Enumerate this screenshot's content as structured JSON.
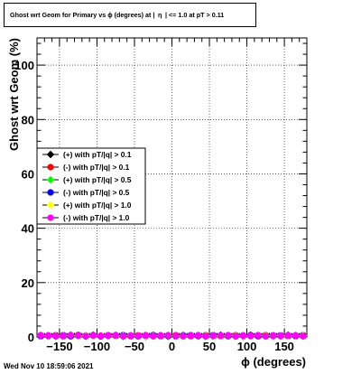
{
  "chart_data": {
    "type": "scatter",
    "title": "Ghost wrt Geom for Primary vs ϕ (degrees) at | η | <= 1.0 at pT > 0.11",
    "xlabel": "ϕ (degrees)",
    "ylabel": "Ghost wrt Geom (%)",
    "xlim": [
      -180,
      180
    ],
    "ylim": [
      0,
      110
    ],
    "x_ticks": [
      -150,
      -100,
      -50,
      0,
      50,
      100,
      150
    ],
    "y_ticks": [
      0,
      20,
      40,
      60,
      80,
      100
    ],
    "grid": true,
    "legend_position": "left-middle",
    "x": [
      -175,
      -165,
      -155,
      -145,
      -135,
      -125,
      -115,
      -105,
      -95,
      -85,
      -75,
      -65,
      -55,
      -45,
      -35,
      -25,
      -15,
      -5,
      5,
      15,
      25,
      35,
      45,
      55,
      65,
      75,
      85,
      95,
      105,
      115,
      125,
      135,
      145,
      155,
      165,
      175
    ],
    "series": [
      {
        "name": "(+) with pT/|q| > 0.1",
        "color": "#000000",
        "marker": "diamond",
        "values": [
          0.4,
          0.6,
          0.3,
          0.5,
          0.7,
          0.4,
          0.3,
          0.6,
          0.5,
          0.4,
          0.6,
          0.3,
          0.5,
          0.4,
          0.2,
          0.6,
          0.5,
          0.3,
          0.4,
          0.6,
          0.5,
          0.4,
          0.3,
          0.5,
          0.6,
          0.4,
          0.5,
          0.3,
          0.6,
          0.4,
          0.5,
          0.3,
          0.4,
          0.6,
          0.5,
          0.4
        ]
      },
      {
        "name": "(-) with pT/|q| > 0.1",
        "color": "#ff0000",
        "marker": "circle",
        "values": [
          0.5,
          0.4,
          0.6,
          0.3,
          0.5,
          0.7,
          0.4,
          0.5,
          0.3,
          0.6,
          0.4,
          0.5,
          0.3,
          0.6,
          0.4,
          0.5,
          0.3,
          0.4,
          0.6,
          0.5,
          0.3,
          0.4,
          0.6,
          0.5,
          0.3,
          0.4,
          0.6,
          0.5,
          0.4,
          0.3,
          0.6,
          0.5,
          0.4,
          0.3,
          0.5,
          0.6
        ]
      },
      {
        "name": "(+) with pT/|q| > 0.5",
        "color": "#00ff00",
        "marker": "diamond",
        "values": [
          0.6,
          0.3,
          0.5,
          0.6,
          0.4,
          0.5,
          0.6,
          0.3,
          0.5,
          0.4,
          0.6,
          0.5,
          0.4,
          0.3,
          0.5,
          0.6,
          0.4,
          0.5,
          0.3,
          0.6,
          0.4,
          0.5,
          0.6,
          0.3,
          0.4,
          0.5,
          0.6,
          0.4,
          0.3,
          0.5,
          0.6,
          0.4,
          0.5,
          0.3,
          0.6,
          0.4
        ]
      },
      {
        "name": "(-) with pT/|q| > 0.5",
        "color": "#0000ff",
        "marker": "circle",
        "values": [
          0.3,
          0.5,
          0.4,
          0.6,
          0.3,
          0.5,
          0.4,
          0.6,
          0.3,
          0.5,
          0.4,
          0.6,
          0.5,
          0.3,
          0.4,
          0.6,
          0.5,
          0.4,
          0.3,
          0.5,
          0.6,
          0.4,
          0.3,
          0.6,
          0.5,
          0.4,
          0.3,
          0.5,
          0.6,
          0.4,
          0.3,
          0.5,
          0.6,
          0.4,
          0.3,
          0.5
        ]
      },
      {
        "name": "(+) with pT/|q| > 1.0",
        "color": "#ffff00",
        "marker": "diamond",
        "values": [
          0.5,
          0.6,
          0.4,
          0.5,
          0.6,
          0.3,
          0.5,
          0.4,
          0.6,
          0.5,
          0.3,
          0.4,
          0.6,
          0.5,
          0.3,
          0.4,
          0.5,
          0.6,
          0.4,
          0.3,
          0.5,
          0.6,
          0.4,
          0.5,
          0.3,
          0.6,
          0.4,
          0.5,
          0.3,
          0.6,
          0.4,
          0.5,
          0.6,
          0.3,
          0.4,
          0.5
        ]
      },
      {
        "name": "(-) with pT/|q| > 1.0",
        "color": "#ff00ff",
        "marker": "circle",
        "values": [
          0.6,
          0.5,
          0.3,
          0.4,
          0.6,
          0.5,
          0.3,
          0.6,
          0.4,
          0.5,
          0.6,
          0.3,
          0.5,
          0.4,
          0.6,
          0.3,
          0.5,
          0.6,
          0.4,
          0.3,
          0.5,
          0.6,
          0.3,
          0.4,
          0.5,
          0.6,
          0.3,
          0.5,
          0.4,
          0.6,
          0.3,
          0.5,
          0.4,
          0.6,
          0.5,
          0.3
        ]
      }
    ]
  },
  "footer": {
    "timestamp": "Wed Nov 10 18:59:06 2021"
  }
}
